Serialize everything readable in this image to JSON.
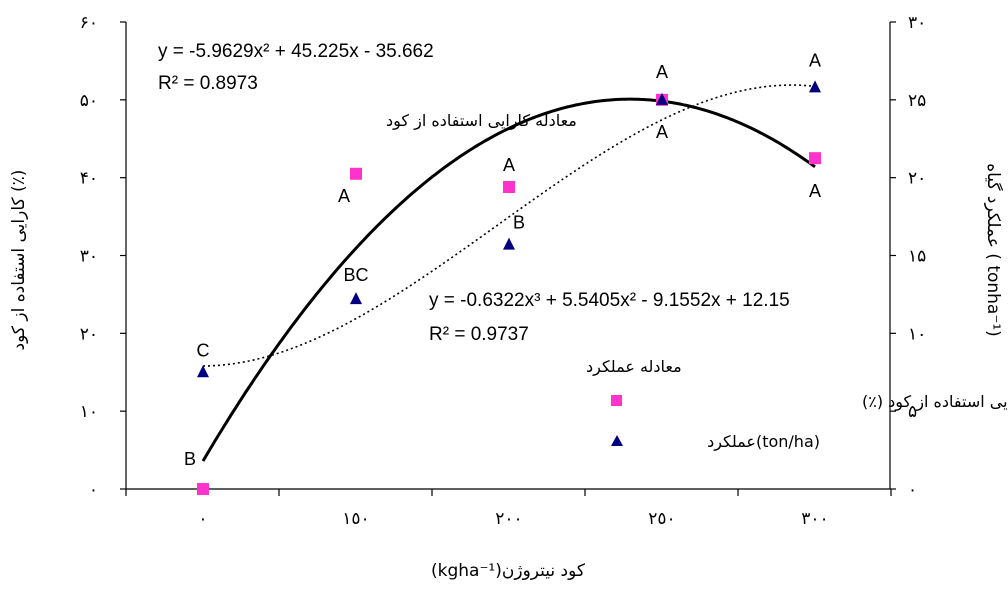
{
  "chart_data": {
    "type": "scatter",
    "categories": [
      "٠",
      "١٥٠",
      "٢٠٠",
      "٢٥٠",
      "٣٠٠"
    ],
    "x_ticks": [
      "٠",
      "١٥٠",
      "٢٠٠",
      "٢٥٠",
      "٣٠٠"
    ],
    "xlabel": "(kgha⁻¹)کود نیتروژن",
    "ylabel_left": "کارایی استفاده از کود (٪)",
    "ylabel_right": "عملکرد گیاه ( tonha⁻¹)",
    "ylim_left": [
      0,
      60
    ],
    "ylim_right": [
      0,
      30
    ],
    "yticks_left": [
      "٠",
      "١٠",
      "٢٠",
      "٣٠",
      "۴٠",
      "۵٠",
      "۶٠"
    ],
    "yticks_right": [
      "٠",
      "۵",
      "١٠",
      "١۵",
      "٢٠",
      "٢۵",
      "٣٠"
    ],
    "grid": false,
    "legend_position": "right-middle",
    "series": [
      {
        "name": "کارایی استفاده از کود (٪)",
        "axis": "left",
        "marker": "square",
        "color": "#FF33CC",
        "values": [
          0,
          40.5,
          38.8,
          50,
          42.5
        ],
        "labels": [
          "B",
          "A",
          "A",
          "A",
          "A"
        ],
        "trend": {
          "type": "poly2",
          "coefficients": [
            -5.9629,
            45.225,
            -35.662
          ],
          "equation": "y = -5.9629x² + 45.225x - 35.662",
          "r2": "R² = 0.8973",
          "caption": "معادله کارایی استفاده از کود",
          "style": "solid"
        }
      },
      {
        "name": "عملکرد(ton/ha)",
        "axis": "right",
        "marker": "triangle",
        "color": "#000080",
        "values": [
          7.5,
          12.2,
          15.7,
          25,
          25.8
        ],
        "labels": [
          "C",
          "BC",
          "B",
          "A",
          "A"
        ],
        "trend": {
          "type": "poly3",
          "coefficients": [
            -0.6322,
            5.5405,
            -9.1552,
            12.15
          ],
          "equation": "y = -0.6322x³ + 5.5405x² - 9.1552x + 12.15",
          "r2": "R² = 0.9737",
          "caption": "معادله عملکرد",
          "style": "dotted"
        }
      }
    ]
  }
}
